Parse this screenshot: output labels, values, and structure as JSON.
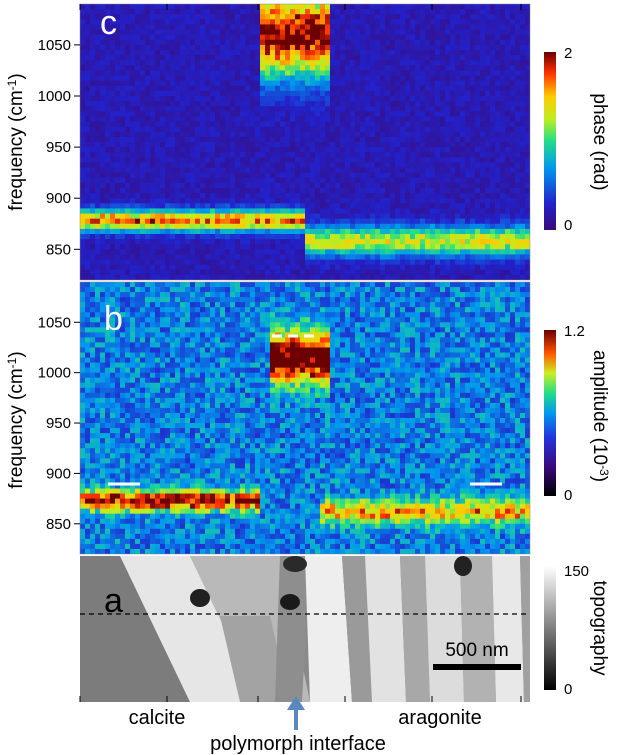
{
  "chart_data": [
    {
      "panel": "c",
      "type": "heatmap",
      "ylabel": "frequency (cm⁻¹)",
      "yticks": [
        850,
        900,
        950,
        1000,
        1050
      ],
      "ylim": [
        820,
        1090
      ],
      "colorbar": {
        "label": "phase (rad)",
        "min": 0,
        "max": 2,
        "min_label": "0",
        "max_label": "2"
      },
      "features": [
        {
          "region": "calcite",
          "x_range": [
            0.0,
            0.5
          ],
          "center_cm": 878,
          "width_cm": 10,
          "intensity": 1.6
        },
        {
          "region": "aragonite",
          "x_range": [
            0.5,
            1.0
          ],
          "center_cm": 858,
          "width_cm": 14,
          "intensity": 1.2
        },
        {
          "region": "interface",
          "x_range": [
            0.4,
            0.55
          ],
          "center_cm": 1060,
          "width_cm": 40,
          "intensity": 2.0
        }
      ],
      "background": 0.2
    },
    {
      "panel": "b",
      "type": "heatmap",
      "ylabel": "frequency (cm⁻¹)",
      "yticks": [
        850,
        900,
        950,
        1000,
        1050
      ],
      "ylim": [
        820,
        1090
      ],
      "colorbar": {
        "label": "amplitude (10⁻³)",
        "min": 0,
        "max": 1.2,
        "min_label": "0",
        "max_label": "1.2"
      },
      "features": [
        {
          "region": "calcite",
          "x_range": [
            0.0,
            0.4
          ],
          "center_cm": 873,
          "width_cm": 10,
          "intensity": 0.9
        },
        {
          "region": "aragonite",
          "x_range": [
            0.53,
            1.0
          ],
          "center_cm": 862,
          "width_cm": 12,
          "intensity": 0.6
        },
        {
          "region": "interface",
          "x_range": [
            0.42,
            0.55
          ],
          "center_cm": 1015,
          "width_cm": 25,
          "intensity": 1.1
        }
      ],
      "background": 0.35
    },
    {
      "panel": "a",
      "type": "image",
      "colorbar": {
        "label": "topography",
        "min": 0,
        "max": 150,
        "min_label": "0",
        "max_label": "150"
      },
      "scale_bar": "500 nm",
      "x_regions": [
        "calcite",
        "aragonite"
      ],
      "annotation": "polymorph interface"
    }
  ],
  "labels": {
    "panel_c": "c",
    "panel_b": "b",
    "panel_a": "a",
    "ylabel_c": "frequency (cm",
    "ylabel_b": "frequency (cm",
    "ylabel_sup": "-1",
    "ylabel_close": ")",
    "cbar_c_title": "phase (rad)",
    "cbar_b_title": "amplitude (10",
    "cbar_b_sup": "-3",
    "cbar_b_close": ")",
    "cbar_a_title": "topography",
    "region_calcite": "calcite",
    "region_aragonite": "aragonite",
    "interface": "polymorph interface",
    "scale_bar": "500 nm"
  }
}
